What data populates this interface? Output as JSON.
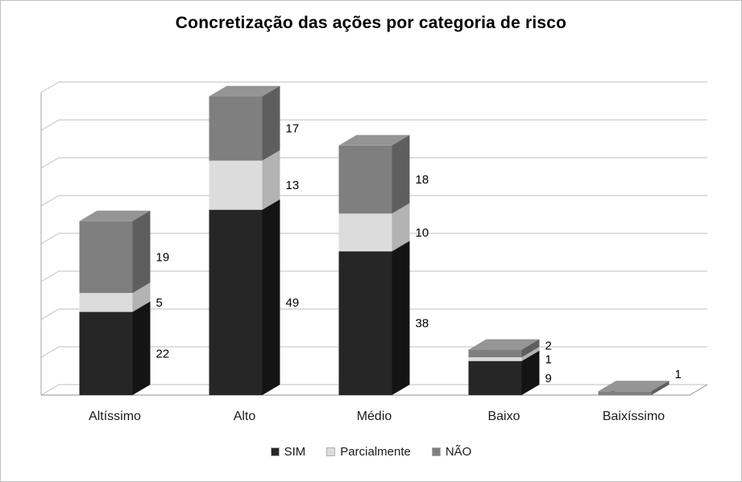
{
  "chart_data": {
    "type": "bar",
    "variant": "3d-stacked-column",
    "title": "Concretização das ações por categoria de risco",
    "categories": [
      "Altíssimo",
      "Alto",
      "Médio",
      "Baixo",
      "Baixíssimo"
    ],
    "series": [
      {
        "name": "SIM",
        "color": "#262626",
        "color_top": "#404040",
        "color_side": "#141414",
        "values": [
          22,
          49,
          38,
          9,
          0
        ]
      },
      {
        "name": "Parcialmente",
        "color": "#dcdcdc",
        "color_top": "#ebebeb",
        "color_side": "#b3b3b3",
        "values": [
          5,
          13,
          10,
          1,
          0
        ]
      },
      {
        "name": "NÃO",
        "color": "#7f7f7f",
        "color_top": "#959595",
        "color_side": "#5e5e5e",
        "values": [
          19,
          17,
          18,
          2,
          1
        ]
      }
    ],
    "xlabel": "",
    "ylabel": "",
    "ylim": [
      0,
      80
    ],
    "grid": true,
    "gridline_step": 10,
    "data_labels": true,
    "legend_position": "bottom",
    "gridline_color": "#bfbfbf",
    "axis_color": "#a6a6a6",
    "label_color": "#000000",
    "category_label_color": "#1a1a1a"
  }
}
